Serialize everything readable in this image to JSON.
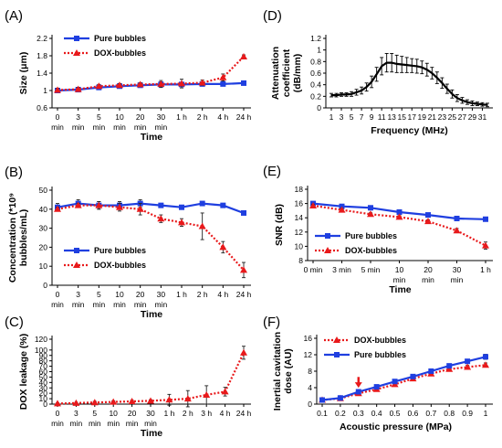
{
  "figure": {
    "panels": [
      "(A)",
      "(B)",
      "(C)",
      "(D)",
      "(E)",
      "(F)"
    ]
  },
  "chart_data": [
    {
      "id": "A",
      "type": "line",
      "panel_label": "(A)",
      "xlabel": "Time",
      "ylabel": "Size (μm)",
      "categories": [
        [
          "0",
          "min"
        ],
        [
          "3",
          "min"
        ],
        [
          "5",
          "min"
        ],
        [
          "10",
          "min"
        ],
        [
          "20",
          "min"
        ],
        [
          "30",
          "min"
        ],
        [
          "1 h",
          ""
        ],
        [
          "2 h",
          ""
        ],
        [
          "4 h",
          ""
        ],
        [
          "24 h",
          ""
        ]
      ],
      "yticks": [
        "0.6",
        "1",
        "1.4",
        "1.8",
        "2.2"
      ],
      "ylim": [
        0.6,
        2.2
      ],
      "legend_position": "top-left",
      "series": [
        {
          "name": "Pure bubbles",
          "color": "#1f3fe0",
          "style": "solid",
          "marker": "square",
          "values": [
            1.0,
            1.02,
            1.07,
            1.1,
            1.12,
            1.14,
            1.14,
            1.15,
            1.15,
            1.17
          ],
          "errors": [
            0.04,
            0.04,
            0.04,
            0.04,
            0.04,
            0.06,
            0.04,
            0.04,
            0.04,
            0.04
          ]
        },
        {
          "name": "DOX-bubbles",
          "color": "#e8191b",
          "style": "dotted",
          "marker": "triangle",
          "values": [
            1.01,
            1.03,
            1.1,
            1.12,
            1.14,
            1.15,
            1.16,
            1.18,
            1.3,
            1.78
          ],
          "errors": [
            0.04,
            0.04,
            0.04,
            0.04,
            0.04,
            0.08,
            0.1,
            0.06,
            0.08,
            0.04
          ]
        }
      ]
    },
    {
      "id": "B",
      "type": "line",
      "panel_label": "(B)",
      "xlabel": "Time",
      "ylabel": [
        "Concentration (*10⁹",
        "bubbles/mL)"
      ],
      "categories": [
        [
          "0",
          "min"
        ],
        [
          "3",
          "min"
        ],
        [
          "5",
          "min"
        ],
        [
          "10",
          "min"
        ],
        [
          "20",
          "min"
        ],
        [
          "30",
          "min"
        ],
        [
          "1 h",
          ""
        ],
        [
          "2 h",
          ""
        ],
        [
          "4 h",
          ""
        ],
        [
          "24 h",
          ""
        ]
      ],
      "yticks": [
        "0",
        "10",
        "20",
        "30",
        "40",
        "50"
      ],
      "ylim": [
        0,
        50
      ],
      "legend_position": "center-left",
      "series": [
        {
          "name": "Pure bubbles",
          "color": "#1f3fe0",
          "style": "solid",
          "marker": "square",
          "values": [
            41,
            43,
            42,
            42,
            43,
            42,
            41,
            43,
            42,
            38
          ],
          "errors": [
            2,
            2,
            2,
            2,
            2,
            1,
            1,
            1,
            1,
            1
          ]
        },
        {
          "name": "DOX-bubbles",
          "color": "#e8191b",
          "style": "dotted",
          "marker": "triangle",
          "values": [
            40,
            42,
            42,
            41,
            40,
            35,
            33,
            31,
            20,
            8
          ],
          "errors": [
            1,
            1,
            2,
            2,
            3,
            2,
            2,
            7,
            3,
            4
          ]
        }
      ]
    },
    {
      "id": "C",
      "type": "line",
      "panel_label": "(C)",
      "xlabel": "Time",
      "ylabel": "DOX leakage (%)",
      "categories": [
        [
          "0",
          "min"
        ],
        [
          "3",
          "min"
        ],
        [
          "5",
          "min"
        ],
        [
          "10",
          "min"
        ],
        [
          "20",
          "min"
        ],
        [
          "30",
          "min"
        ],
        [
          "1 h",
          ""
        ],
        [
          "2 h",
          ""
        ],
        [
          "3 h",
          ""
        ],
        [
          "4 h",
          ""
        ],
        [
          "24 h",
          ""
        ]
      ],
      "yticks": [
        "0",
        "10",
        "20",
        "30",
        "40",
        "50",
        "60",
        "70",
        "80",
        "90",
        "100",
        "120"
      ],
      "ytick_values": [
        0,
        10,
        20,
        30,
        40,
        50,
        60,
        70,
        80,
        90,
        100,
        120
      ],
      "ylim": [
        0,
        120
      ],
      "series": [
        {
          "name": "",
          "color": "#e8191b",
          "style": "dotted",
          "marker": "triangle",
          "values": [
            1,
            2,
            3,
            4,
            5,
            6,
            8,
            10,
            17,
            23,
            95
          ],
          "errors": [
            1,
            1,
            2,
            2,
            2,
            2,
            10,
            15,
            17,
            8,
            12
          ]
        }
      ]
    },
    {
      "id": "D",
      "type": "line",
      "panel_label": "(D)",
      "xlabel": "Frequency (MHz)",
      "ylabel": [
        "Attenuation",
        "coefficient",
        "(dB/mm)"
      ],
      "x": [
        1,
        2,
        3,
        4,
        5,
        6,
        7,
        8,
        9,
        10,
        11,
        12,
        13,
        14,
        15,
        16,
        17,
        18,
        19,
        20,
        21,
        22,
        23,
        24,
        25,
        26,
        27,
        28,
        29,
        30,
        31,
        32
      ],
      "xticks": [
        "1",
        "3",
        "5",
        "7",
        "9",
        "11",
        "13",
        "15",
        "17",
        "19",
        "21",
        "23",
        "25",
        "27",
        "29",
        "31"
      ],
      "yticks": [
        "0",
        "0.2",
        "0.4",
        "0.6",
        "0.8",
        "1",
        "1.2"
      ],
      "ylim": [
        0,
        1.2
      ],
      "series": [
        {
          "name": "",
          "color": "#000000",
          "style": "solid",
          "marker": "none",
          "values": [
            0.22,
            0.22,
            0.23,
            0.23,
            0.24,
            0.27,
            0.3,
            0.36,
            0.45,
            0.58,
            0.72,
            0.78,
            0.78,
            0.76,
            0.75,
            0.74,
            0.73,
            0.72,
            0.7,
            0.66,
            0.6,
            0.52,
            0.43,
            0.33,
            0.24,
            0.17,
            0.13,
            0.1,
            0.08,
            0.07,
            0.06,
            0.05
          ],
          "errors": [
            0.03,
            0.03,
            0.03,
            0.03,
            0.04,
            0.05,
            0.06,
            0.07,
            0.1,
            0.12,
            0.15,
            0.16,
            0.16,
            0.15,
            0.14,
            0.13,
            0.12,
            0.12,
            0.11,
            0.11,
            0.1,
            0.1,
            0.09,
            0.08,
            0.07,
            0.06,
            0.05,
            0.04,
            0.04,
            0.03,
            0.03,
            0.03
          ]
        }
      ]
    },
    {
      "id": "E",
      "type": "line",
      "panel_label": "(E)",
      "xlabel": "Time",
      "ylabel": "SNR (dB)",
      "categories": [
        [
          "0 min",
          ""
        ],
        [
          "3 min",
          ""
        ],
        [
          "5 min",
          ""
        ],
        [
          "10",
          "min"
        ],
        [
          "20",
          "min"
        ],
        [
          "30",
          "min"
        ],
        [
          "1 h",
          ""
        ]
      ],
      "yticks": [
        "8",
        "10",
        "12",
        "14",
        "16",
        "18"
      ],
      "ylim": [
        8,
        18
      ],
      "legend_position": "center-left",
      "series": [
        {
          "name": "Pure bubbles",
          "color": "#1f3fe0",
          "style": "solid",
          "marker": "square",
          "values": [
            16.0,
            15.6,
            15.4,
            14.8,
            14.4,
            13.9,
            13.8
          ],
          "errors": [
            0.2,
            0.2,
            0.2,
            0.2,
            0.2,
            0.2,
            0.2
          ]
        },
        {
          "name": "DOX-bubbles",
          "color": "#e8191b",
          "style": "dotted",
          "marker": "triangle",
          "values": [
            15.7,
            15.1,
            14.5,
            14.1,
            13.5,
            12.2,
            10.1
          ],
          "errors": [
            0.2,
            0.2,
            0.2,
            0.2,
            0.2,
            0.3,
            0.5
          ]
        }
      ]
    },
    {
      "id": "F",
      "type": "line",
      "panel_label": "(F)",
      "xlabel": "Acoustic pressure (MPa)",
      "ylabel": [
        "Inertial cavitation",
        "dose (AU)"
      ],
      "categories": [
        [
          "0.1",
          ""
        ],
        [
          "0.2",
          ""
        ],
        [
          "0.3",
          ""
        ],
        [
          "0.4",
          ""
        ],
        [
          "0.5",
          ""
        ],
        [
          "0.6",
          ""
        ],
        [
          "0.7",
          ""
        ],
        [
          "0.8",
          ""
        ],
        [
          "0.9",
          ""
        ],
        [
          "1",
          ""
        ]
      ],
      "yticks": [
        "0",
        "4",
        "8",
        "12",
        "16"
      ],
      "ylim": [
        0,
        16
      ],
      "legend_position": "top-left",
      "annotation": "red down-arrow at 0.3 MPa",
      "series": [
        {
          "name": "DOX-bubbles",
          "color": "#e8191b",
          "style": "dotted",
          "marker": "triangle",
          "values": [
            1.0,
            1.4,
            2.6,
            3.6,
            4.8,
            6.2,
            7.4,
            8.5,
            9.0,
            9.5
          ],
          "errors": [
            0.2,
            0.2,
            0.3,
            0.3,
            0.3,
            0.3,
            0.4,
            0.4,
            0.4,
            0.5
          ]
        },
        {
          "name": "Pure bubbles",
          "color": "#1f3fe0",
          "style": "solid",
          "marker": "square",
          "values": [
            1.0,
            1.5,
            3.0,
            4.2,
            5.5,
            6.7,
            8.0,
            9.3,
            10.4,
            11.5
          ],
          "errors": [
            0.2,
            0.2,
            0.3,
            0.3,
            0.3,
            0.3,
            0.4,
            0.4,
            0.4,
            0.6
          ]
        }
      ]
    }
  ]
}
